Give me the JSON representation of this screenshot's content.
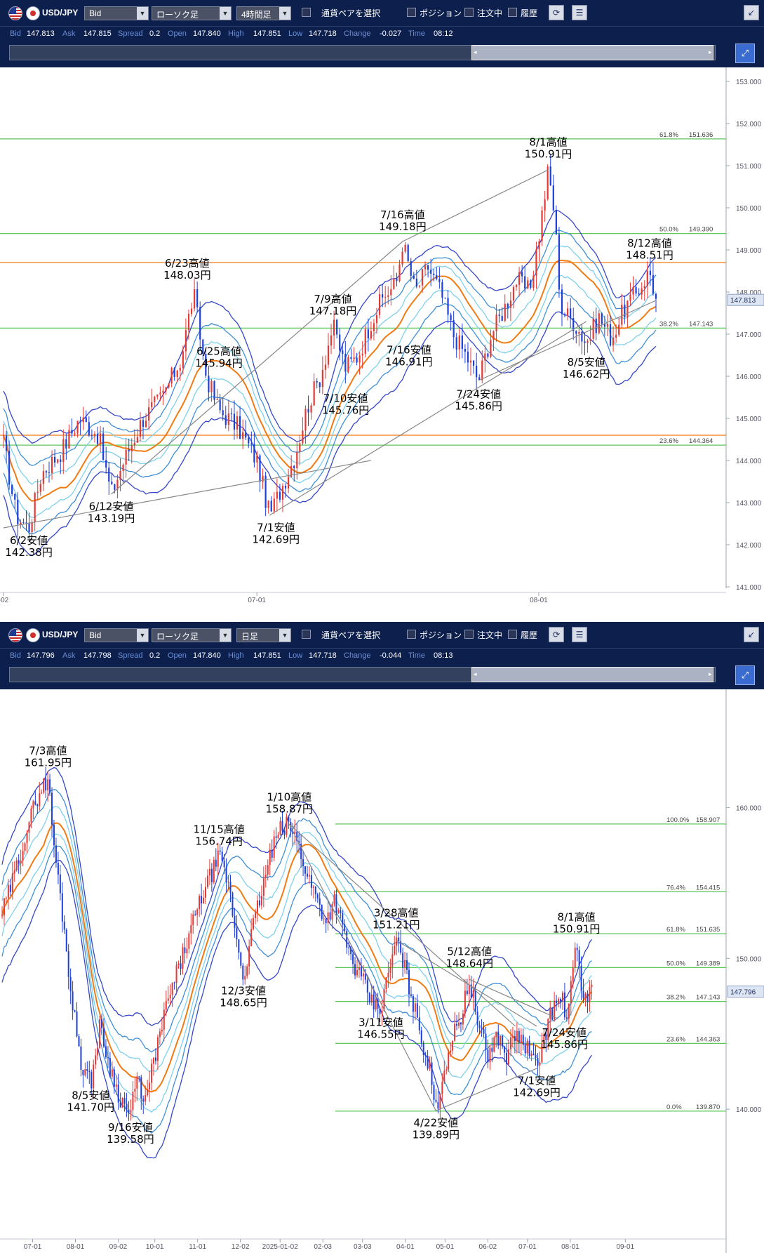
{
  "panels": [
    {
      "pair": "USD/JPY",
      "price_side": "Bid",
      "chart_type": "ローソク足",
      "timeframe": "4時間足",
      "pair_select_label": "通貨ペアを選択",
      "toggles": [
        "ポジション",
        "注文中",
        "履歴"
      ],
      "info": {
        "bid_label": "Bid",
        "bid": "147.813",
        "ask_label": "Ask",
        "ask": "147.815",
        "spread_label": "Spread",
        "spread": "0.2",
        "open_label": "Open",
        "open": "147.840",
        "high_label": "High",
        "high": "147.851",
        "low_label": "Low",
        "low": "147.718",
        "change_label": "Change",
        "change": "-0.027",
        "time_label": "Time",
        "time": "08:12"
      },
      "current_price_tag": "147.813",
      "colors": {
        "bull": "#e53935",
        "bear": "#1e3fd8",
        "ma_mid": "#f07b14",
        "band1": "#7ed0ee",
        "band2": "#3f8fd6",
        "band3": "#3447c8",
        "fib": "#5cc85c",
        "hline": "#f07b14",
        "trend": "#888888"
      },
      "chart_data": {
        "type": "candlestick",
        "timeframe": "4H",
        "ylim": [
          141.0,
          153.0
        ],
        "y_ticks": [
          "141.000",
          "142.000",
          "143.000",
          "144.000",
          "145.000",
          "146.000",
          "147.000",
          "148.000",
          "149.000",
          "150.000",
          "151.000",
          "152.000",
          "153.000"
        ],
        "x_ticks": [
          {
            "label": "-02",
            "t": 0
          },
          {
            "label": "07-01",
            "t": 0.4
          },
          {
            "label": "08-01",
            "t": 0.845
          }
        ],
        "fib_levels": [
          {
            "label": "61.8%",
            "value": "151.636",
            "price": 151.636
          },
          {
            "label": "50.0%",
            "value": "149.390",
            "price": 149.39
          },
          {
            "label": "38.2%",
            "value": "147.143",
            "price": 147.143
          },
          {
            "label": "23.6%",
            "value": "144.364",
            "price": 144.364
          }
        ],
        "horizontal_lines": [
          148.7,
          144.6
        ],
        "anchors": [
          [
            0.0,
            144.4
          ],
          [
            0.02,
            142.7
          ],
          [
            0.04,
            142.4
          ],
          [
            0.06,
            143.7
          ],
          [
            0.09,
            144.2
          ],
          [
            0.12,
            145.0
          ],
          [
            0.15,
            144.6
          ],
          [
            0.17,
            143.2
          ],
          [
            0.19,
            144.0
          ],
          [
            0.22,
            145.0
          ],
          [
            0.25,
            145.5
          ],
          [
            0.28,
            146.4
          ],
          [
            0.3,
            148.0
          ],
          [
            0.32,
            146.0
          ],
          [
            0.34,
            145.2
          ],
          [
            0.37,
            144.8
          ],
          [
            0.4,
            144.0
          ],
          [
            0.42,
            142.7
          ],
          [
            0.44,
            143.4
          ],
          [
            0.46,
            144.1
          ],
          [
            0.48,
            145.3
          ],
          [
            0.5,
            146.0
          ],
          [
            0.52,
            147.2
          ],
          [
            0.54,
            146.2
          ],
          [
            0.56,
            146.5
          ],
          [
            0.58,
            147.3
          ],
          [
            0.6,
            147.9
          ],
          [
            0.62,
            148.2
          ],
          [
            0.63,
            149.2
          ],
          [
            0.65,
            148.0
          ],
          [
            0.67,
            148.6
          ],
          [
            0.69,
            148.0
          ],
          [
            0.71,
            147.0
          ],
          [
            0.73,
            146.5
          ],
          [
            0.75,
            145.9
          ],
          [
            0.77,
            147.0
          ],
          [
            0.79,
            147.6
          ],
          [
            0.81,
            148.3
          ],
          [
            0.83,
            148.0
          ],
          [
            0.845,
            149.3
          ],
          [
            0.86,
            150.9
          ],
          [
            0.87,
            149.8
          ],
          [
            0.88,
            147.6
          ],
          [
            0.9,
            147.3
          ],
          [
            0.92,
            146.8
          ],
          [
            0.94,
            147.4
          ],
          [
            0.96,
            146.9
          ],
          [
            0.98,
            147.6
          ],
          [
            1.0,
            148.0
          ],
          [
            1.02,
            148.5
          ],
          [
            1.03,
            147.8
          ]
        ],
        "trendlines": [
          [
            0.0,
            142.4,
            0.58,
            144.0
          ],
          [
            0.17,
            143.2,
            0.63,
            149.2
          ],
          [
            0.42,
            142.7,
            0.92,
            147.3
          ],
          [
            0.63,
            149.2,
            0.86,
            150.9
          ],
          [
            0.75,
            145.9,
            1.03,
            147.8
          ]
        ],
        "annotations": [
          {
            "line1": "6/2安値",
            "line2": "142.38円",
            "t": 0.04,
            "price": 142.38,
            "pos": "below"
          },
          {
            "line1": "6/12安値",
            "line2": "143.19円",
            "t": 0.17,
            "price": 143.19,
            "pos": "below"
          },
          {
            "line1": "6/23高値",
            "line2": "148.03円",
            "t": 0.29,
            "price": 148.03,
            "pos": "above"
          },
          {
            "line1": "6/25高値",
            "line2": "145.94円",
            "t": 0.34,
            "price": 145.94,
            "pos": "above"
          },
          {
            "line1": "7/1安値",
            "line2": "142.69円",
            "t": 0.43,
            "price": 142.69,
            "pos": "below"
          },
          {
            "line1": "7/9高値",
            "line2": "147.18円",
            "t": 0.52,
            "price": 147.18,
            "pos": "above"
          },
          {
            "line1": "7/10安値",
            "line2": "145.76円",
            "t": 0.54,
            "price": 145.76,
            "pos": "below"
          },
          {
            "line1": "7/16高値",
            "line2": "149.18円",
            "t": 0.63,
            "price": 149.18,
            "pos": "above"
          },
          {
            "line1": "7/16安値",
            "line2": "146.91円",
            "t": 0.64,
            "price": 146.91,
            "pos": "below"
          },
          {
            "line1": "7/24安値",
            "line2": "145.86円",
            "t": 0.75,
            "price": 145.86,
            "pos": "below"
          },
          {
            "line1": "8/1高値",
            "line2": "150.91円",
            "t": 0.86,
            "price": 150.91,
            "pos": "above"
          },
          {
            "line1": "8/5安値",
            "line2": "146.62円",
            "t": 0.92,
            "price": 146.62,
            "pos": "below"
          },
          {
            "line1": "8/12高値",
            "line2": "148.51円",
            "t": 1.02,
            "price": 148.51,
            "pos": "above"
          }
        ]
      }
    },
    {
      "pair": "USD/JPY",
      "price_side": "Bid",
      "chart_type": "ローソク足",
      "timeframe": "日足",
      "pair_select_label": "通貨ペアを選択",
      "toggles": [
        "ポジション",
        "注文中",
        "履歴"
      ],
      "info": {
        "bid_label": "Bid",
        "bid": "147.796",
        "ask_label": "Ask",
        "ask": "147.798",
        "spread_label": "Spread",
        "spread": "0.2",
        "open_label": "Open",
        "open": "147.840",
        "high_label": "High",
        "high": "147.851",
        "low_label": "Low",
        "low": "147.718",
        "change_label": "Change",
        "change": "-0.044",
        "time_label": "Time",
        "time": "08:13"
      },
      "current_price_tag": "147.796",
      "colors": {
        "bull": "#e53935",
        "bear": "#1e3fd8",
        "ma_mid": "#f07b14",
        "band1": "#7ed0ee",
        "band2": "#3f8fd6",
        "band3": "#3447c8",
        "fib": "#5cc85c",
        "hline": "#f07b14",
        "trend": "#888888"
      },
      "chart_data": {
        "type": "candlestick",
        "timeframe": "1D",
        "ylim": [
          132.0,
          167.0
        ],
        "y_ticks": [
          "140.000",
          "150.000",
          "160.000"
        ],
        "x_ticks": [
          {
            "label": "07-01",
            "t": 0.05
          },
          {
            "label": "08-01",
            "t": 0.12
          },
          {
            "label": "09-02",
            "t": 0.19
          },
          {
            "label": "10-01",
            "t": 0.25
          },
          {
            "label": "11-01",
            "t": 0.32
          },
          {
            "label": "12-02",
            "t": 0.39
          },
          {
            "label": "2025-01-02",
            "t": 0.455
          },
          {
            "label": "02-03",
            "t": 0.525
          },
          {
            "label": "03-03",
            "t": 0.59
          },
          {
            "label": "04-01",
            "t": 0.66
          },
          {
            "label": "05-01",
            "t": 0.725
          },
          {
            "label": "06-02",
            "t": 0.795
          },
          {
            "label": "07-01",
            "t": 0.86
          },
          {
            "label": "08-01",
            "t": 0.93
          },
          {
            "label": "09-01",
            "t": 1.02
          }
        ],
        "fib_levels": [
          {
            "label": "100.0%",
            "value": "158.907",
            "price": 158.907
          },
          {
            "label": "76.4%",
            "value": "154.415",
            "price": 154.415
          },
          {
            "label": "61.8%",
            "value": "151.635",
            "price": 151.635
          },
          {
            "label": "50.0%",
            "value": "149.389",
            "price": 149.389
          },
          {
            "label": "38.2%",
            "value": "147.143",
            "price": 147.143
          },
          {
            "label": "23.6%",
            "value": "144.363",
            "price": 144.363
          },
          {
            "label": "0.0%",
            "value": "139.870",
            "price": 139.87
          }
        ],
        "horizontal_lines": [],
        "anchors": [
          [
            0.0,
            153.0
          ],
          [
            0.02,
            155.5
          ],
          [
            0.04,
            158.5
          ],
          [
            0.06,
            161.0
          ],
          [
            0.075,
            161.9
          ],
          [
            0.085,
            157.5
          ],
          [
            0.1,
            152.5
          ],
          [
            0.115,
            147.0
          ],
          [
            0.13,
            143.0
          ],
          [
            0.145,
            141.7
          ],
          [
            0.16,
            145.5
          ],
          [
            0.175,
            143.0
          ],
          [
            0.19,
            141.0
          ],
          [
            0.21,
            139.6
          ],
          [
            0.22,
            142.0
          ],
          [
            0.235,
            140.5
          ],
          [
            0.25,
            143.5
          ],
          [
            0.27,
            147.0
          ],
          [
            0.29,
            149.5
          ],
          [
            0.31,
            152.0
          ],
          [
            0.33,
            154.5
          ],
          [
            0.355,
            156.7
          ],
          [
            0.37,
            155.0
          ],
          [
            0.385,
            151.0
          ],
          [
            0.395,
            148.7
          ],
          [
            0.41,
            152.0
          ],
          [
            0.425,
            154.5
          ],
          [
            0.44,
            157.0
          ],
          [
            0.455,
            158.5
          ],
          [
            0.47,
            158.9
          ],
          [
            0.485,
            157.5
          ],
          [
            0.5,
            155.5
          ],
          [
            0.515,
            154.0
          ],
          [
            0.53,
            152.5
          ],
          [
            0.545,
            154.0
          ],
          [
            0.56,
            151.5
          ],
          [
            0.575,
            149.5
          ],
          [
            0.59,
            148.5
          ],
          [
            0.605,
            147.0
          ],
          [
            0.62,
            146.6
          ],
          [
            0.635,
            149.5
          ],
          [
            0.645,
            151.2
          ],
          [
            0.655,
            150.0
          ],
          [
            0.67,
            147.5
          ],
          [
            0.685,
            145.0
          ],
          [
            0.7,
            142.5
          ],
          [
            0.71,
            139.9
          ],
          [
            0.72,
            142.0
          ],
          [
            0.735,
            144.5
          ],
          [
            0.75,
            146.0
          ],
          [
            0.765,
            148.6
          ],
          [
            0.78,
            145.5
          ],
          [
            0.795,
            143.5
          ],
          [
            0.81,
            145.0
          ],
          [
            0.825,
            143.5
          ],
          [
            0.84,
            145.0
          ],
          [
            0.86,
            144.0
          ],
          [
            0.875,
            142.7
          ],
          [
            0.885,
            144.5
          ],
          [
            0.9,
            146.5
          ],
          [
            0.915,
            147.5
          ],
          [
            0.925,
            146.0
          ],
          [
            0.94,
            150.9
          ],
          [
            0.95,
            147.5
          ],
          [
            0.965,
            147.8
          ]
        ],
        "trendlines": [
          [
            0.47,
            158.9,
            0.84,
            145.5
          ],
          [
            0.47,
            158.9,
            0.71,
            139.9
          ],
          [
            0.645,
            151.2,
            0.875,
            145.5
          ],
          [
            0.765,
            148.6,
            0.91,
            146.0
          ],
          [
            0.71,
            139.9,
            0.875,
            142.7
          ]
        ],
        "annotations": [
          {
            "line1": "7/3高値",
            "line2": "161.95円",
            "t": 0.075,
            "price": 161.95,
            "pos": "above"
          },
          {
            "line1": "8/5安値",
            "line2": "141.70円",
            "t": 0.145,
            "price": 141.7,
            "pos": "below"
          },
          {
            "line1": "9/16安値",
            "line2": "139.58円",
            "t": 0.21,
            "price": 139.58,
            "pos": "below"
          },
          {
            "line1": "11/15高値",
            "line2": "156.74円",
            "t": 0.355,
            "price": 156.74,
            "pos": "above"
          },
          {
            "line1": "12/3安値",
            "line2": "148.65円",
            "t": 0.395,
            "price": 148.65,
            "pos": "below"
          },
          {
            "line1": "1/10高値",
            "line2": "158.87円",
            "t": 0.47,
            "price": 158.87,
            "pos": "above"
          },
          {
            "line1": "3/28高値",
            "line2": "151.21円",
            "t": 0.645,
            "price": 151.21,
            "pos": "above"
          },
          {
            "line1": "3/11安値",
            "line2": "146.55円",
            "t": 0.62,
            "price": 146.55,
            "pos": "below"
          },
          {
            "line1": "4/22安値",
            "line2": "139.89円",
            "t": 0.71,
            "price": 139.89,
            "pos": "below"
          },
          {
            "line1": "5/12高値",
            "line2": "148.64円",
            "t": 0.765,
            "price": 148.64,
            "pos": "above"
          },
          {
            "line1": "7/1安値",
            "line2": "142.69円",
            "t": 0.875,
            "price": 142.69,
            "pos": "below"
          },
          {
            "line1": "7/24安値",
            "line2": "145.86円",
            "t": 0.92,
            "price": 145.86,
            "pos": "below"
          },
          {
            "line1": "8/1高値",
            "line2": "150.91円",
            "t": 0.94,
            "price": 150.91,
            "pos": "above"
          }
        ]
      }
    }
  ]
}
